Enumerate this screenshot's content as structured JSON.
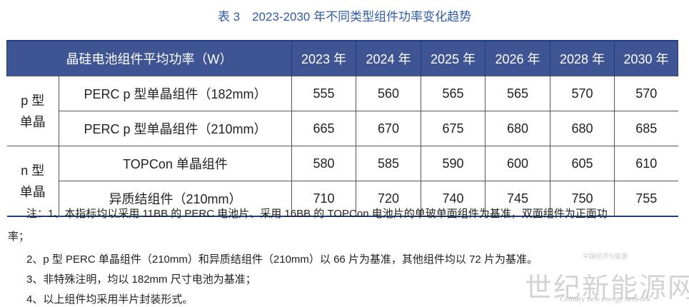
{
  "caption": "表 3　2023-2030 年不同类型组件功率变化趋势",
  "table": {
    "header_label": "晶硅电池组件平均功率（W）",
    "years": [
      "2023 年",
      "2024 年",
      "2025 年",
      "2026 年",
      "2028 年",
      "2030 年"
    ],
    "groups": [
      {
        "name": "p 型\n单晶",
        "rows": [
          {
            "label": "PERC p 型单晶组件（182mm）",
            "values": [
              "555",
              "560",
              "565",
              "565",
              "570",
              "570"
            ]
          },
          {
            "label": "PERC p 型单晶组件（210mm）",
            "values": [
              "665",
              "670",
              "675",
              "680",
              "680",
              "685"
            ]
          }
        ]
      },
      {
        "name": "n 型\n单晶",
        "rows": [
          {
            "label": "TOPCon 单晶组件",
            "values": [
              "580",
              "585",
              "590",
              "600",
              "605",
              "610"
            ]
          },
          {
            "label": "异质结组件（210mm）",
            "values": [
              "710",
              "720",
              "740",
              "745",
              "750",
              "755"
            ]
          }
        ]
      }
    ]
  },
  "notes": [
    "注：1、本指标均以采用 11BB 的 PERC 电池片、采用 16BB 的 TOPCon 电池片的单玻单面组件为基准，双面组件为正面功",
    "率；",
    "2、p 型 PERC 单晶组件（210mm）和异质结组件（210mm）以 66 片为基准，其他组件均以 72 片为基准。",
    "3、非特殊注明，均以 182mm 尺寸电池为基准；",
    "4、以上组件均采用半片封装形式。"
  ],
  "watermark": {
    "main": "世纪新能源网",
    "sub": "Century new energy network",
    "small": "中国经济与能源"
  }
}
